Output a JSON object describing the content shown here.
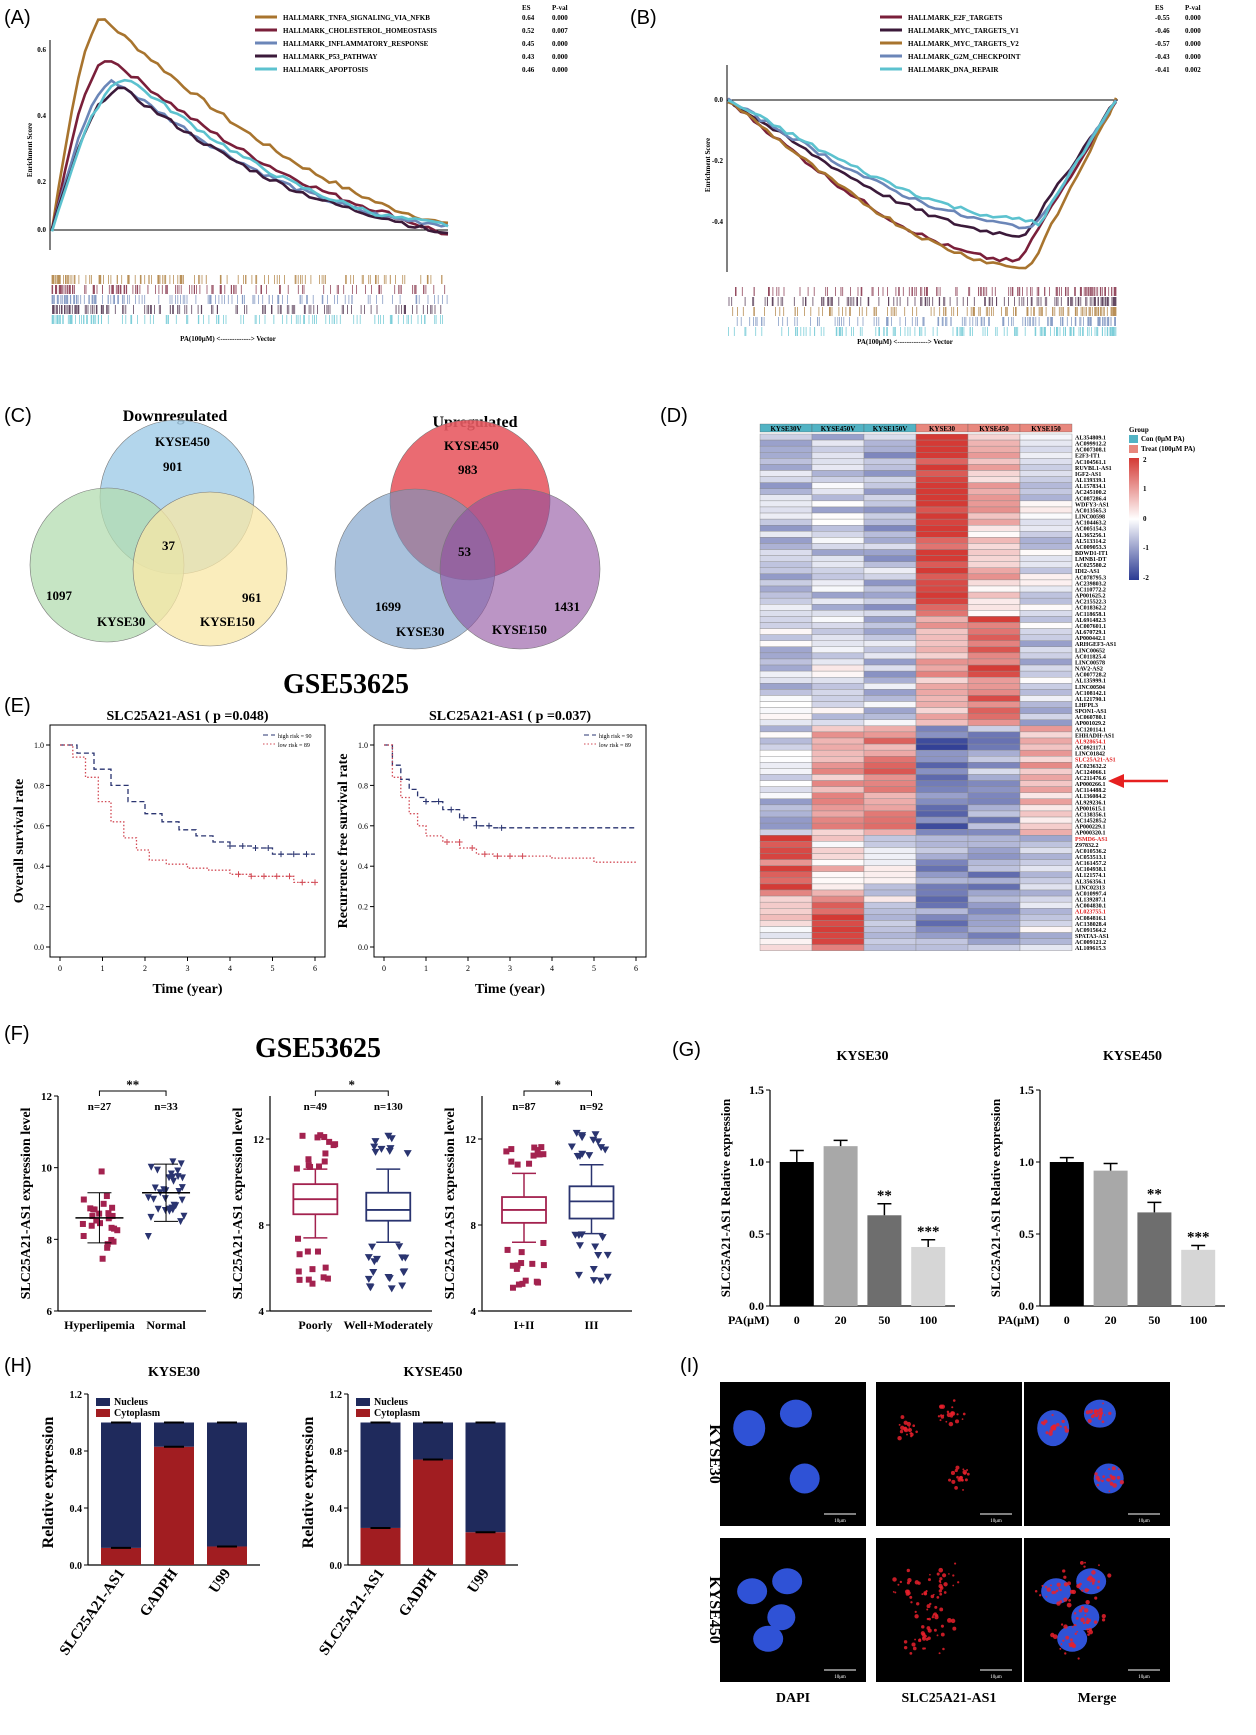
{
  "panels": {
    "A": {
      "label": "(A)",
      "chart_data": {
        "type": "line",
        "ylabel": "Enrichment Score",
        "xlabel": "PA(100μM) <-------------> Vector",
        "ticks": [
          "0.6",
          "0.4",
          "0.2",
          "0.0"
        ],
        "es_header": "ES",
        "pval_header": "P-val",
        "series": [
          {
            "name": "HALLMARK_TNFA_SIGNALING_VIA_NFKB",
            "es": "0.64",
            "pval": "0.000",
            "color": "#a8742e"
          },
          {
            "name": "HALLMARK_CHOLESTEROL_HOMEOSTASIS",
            "es": "0.52",
            "pval": "0.007",
            "color": "#7a1f3a"
          },
          {
            "name": "HALLMARK_INFLAMMATORY_RESPONSE",
            "es": "0.45",
            "pval": "0.000",
            "color": "#6b86b8"
          },
          {
            "name": "HALLMARK_P53_PATHWAY",
            "es": "0.43",
            "pval": "0.000",
            "color": "#3b1a3a"
          },
          {
            "name": "HALLMARK_APOPTOSIS",
            "es": "0.46",
            "pval": "0.000",
            "color": "#5cc2cf"
          }
        ]
      }
    },
    "B": {
      "label": "(B)",
      "chart_data": {
        "type": "line",
        "ylabel": "Enrichment Score",
        "xlabel": "PA(100μM) <-------------> Vector",
        "ticks": [
          "0.0",
          "-0.2",
          "-0.4"
        ],
        "es_header": "ES",
        "pval_header": "P-val",
        "series": [
          {
            "name": "HALLMARK_E2F_TARGETS",
            "es": "-0.55",
            "pval": "0.000",
            "color": "#7a1f3a"
          },
          {
            "name": "HALLMARK_MYC_TARGETS_V1",
            "es": "-0.46",
            "pval": "0.000",
            "color": "#3b1a3a"
          },
          {
            "name": "HALLMARK_MYC_TARGETS_V2",
            "es": "-0.57",
            "pval": "0.000",
            "color": "#a8742e"
          },
          {
            "name": "HALLMARK_G2M_CHECKPOINT",
            "es": "-0.43",
            "pval": "0.000",
            "color": "#6b86b8"
          },
          {
            "name": "HALLMARK_DNA_REPAIR",
            "es": "-0.41",
            "pval": "0.002",
            "color": "#5cc2cf"
          }
        ]
      }
    },
    "C": {
      "label": "(C)",
      "down": {
        "title": "Downregulated",
        "sets": [
          "KYSE450",
          "KYSE30",
          "KYSE150"
        ],
        "only": [
          "901",
          "1097",
          "961"
        ],
        "common": "37"
      },
      "up": {
        "title": "Upregulated",
        "sets": [
          "KYSE450",
          "KYSE30",
          "KYSE150"
        ],
        "only": [
          "983",
          "1699",
          "1431"
        ],
        "common": "53"
      }
    },
    "D": {
      "label": "(D)",
      "chart_data": {
        "type": "heatmap",
        "columns": [
          "KYSE30V",
          "KYSE450V",
          "KYSE150V",
          "KYSE30",
          "KYSE450",
          "KYSE150"
        ],
        "legend_title": "Group",
        "groups": [
          {
            "name": "Con (0μM PA)",
            "color": "#52b3c4"
          },
          {
            "name": "Treat (100μM PA)",
            "color": "#e8877d"
          }
        ],
        "scale_ticks": [
          "2",
          "1",
          "0",
          "-1",
          "-2"
        ],
        "rows": [
          "AL354809.1",
          "AC099912.2",
          "AC007308.1",
          "E2F3-IT1",
          "AC104561.1",
          "RUVBL1-AS1",
          "IGF2-AS1",
          "AL139339.1",
          "AL157834.1",
          "AC245100.2",
          "AC087286.4",
          "WDFY3-AS1",
          "AC013565.3",
          "LINC00598",
          "AC104463.2",
          "AC005154.3",
          "AL365256.1",
          "AL513314.2",
          "AC009053.3",
          "BDWD1-IT1",
          "LMNB1-DT",
          "AC025580.2",
          "IDI2-AS1",
          "AC078795.3",
          "AC239803.2",
          "AC110772.2",
          "AP001625.2",
          "AC215522.3",
          "AC018362.2",
          "AC118658.1",
          "AL691482.3",
          "AC007601.1",
          "AL670729.1",
          "AP000442.1",
          "ARHGEF3-AS1",
          "LINC00652",
          "AC011825.4",
          "LINC00578",
          "NAV2-AS2",
          "AC007728.2",
          "AL135999.1",
          "LINC00504",
          "AC108142.1",
          "AL121790.1",
          "LHFPL3",
          "SPON1-AS1",
          "AC060780.1",
          "AP001029.2",
          "AC120114.1",
          "EHHADH-AS1",
          "AL928654.1",
          "AC092117.1",
          "LINC01842",
          "SLC25A21-AS1",
          "AC023632.2",
          "AC124066.1",
          "AC211476.6",
          "AP000266.1",
          "AC114488.2",
          "AL136084.2",
          "AL929236.1",
          "AP001615.1",
          "AC138356.1",
          "AC145285.2",
          "AP000229.1",
          "AP000320.1",
          "PSMD6-AS1",
          "Z97832.2",
          "AC010536.2",
          "AC053513.1",
          "AC161457.2",
          "AC104938.1",
          "AL121574.1",
          "AL356356.1",
          "LINC02313",
          "AC010997.4",
          "AL139287.1",
          "AC004830.1",
          "AL023755.1",
          "AC084816.1",
          "AC138028.4",
          "AC091564.2",
          "SPATA3-AS1",
          "AC009121.2",
          "AL109615.3"
        ],
        "highlight_rows": [
          "AL928654.1",
          "SLC25A21-AS1",
          "PSMD6-AS1",
          "AL023755.1"
        ],
        "arrow_target": "SLC25A21-AS1"
      }
    },
    "E": {
      "label": "(E)",
      "dataset": "GSE53625",
      "plots": [
        {
          "title": "SLC25A21-AS1 ( p =0.048)",
          "ylabel": "Overall survival rate",
          "xlabel": "Time (year)",
          "legend": [
            "high risk = 90",
            "low risk = 89"
          ],
          "chart_data": {
            "type": "line",
            "x_ticks": [
              "0",
              "1",
              "2",
              "3",
              "4",
              "5",
              "6"
            ],
            "y_ticks": [
              "0.0",
              "0.2",
              "0.4",
              "0.6",
              "0.8",
              "1.0"
            ],
            "series": [
              {
                "name": "high risk = 90",
                "x": [
                  0,
                  0.4,
                  0.8,
                  1.2,
                  1.6,
                  2.0,
                  2.4,
                  2.8,
                  3.2,
                  3.6,
                  4.0,
                  4.5,
                  5.0,
                  5.5,
                  6.0
                ],
                "y": [
                  1.0,
                  0.96,
                  0.88,
                  0.8,
                  0.72,
                  0.66,
                  0.62,
                  0.58,
                  0.55,
                  0.52,
                  0.5,
                  0.49,
                  0.46,
                  0.46,
                  0.46
                ]
              },
              {
                "name": "low risk = 89",
                "x": [
                  0,
                  0.3,
                  0.6,
                  0.9,
                  1.2,
                  1.5,
                  1.8,
                  2.1,
                  2.5,
                  3.0,
                  3.5,
                  4.0,
                  4.5,
                  5.0,
                  5.5,
                  6.0
                ],
                "y": [
                  1.0,
                  0.94,
                  0.84,
                  0.72,
                  0.62,
                  0.54,
                  0.48,
                  0.43,
                  0.41,
                  0.39,
                  0.38,
                  0.36,
                  0.35,
                  0.35,
                  0.32,
                  0.32
                ]
              }
            ]
          }
        },
        {
          "title": "SLC25A21-AS1 ( p =0.037)",
          "ylabel": "Recurrence free survival rate",
          "xlabel": "Time (year)",
          "legend": [
            "high risk = 90",
            "low risk = 89"
          ],
          "chart_data": {
            "type": "line",
            "x_ticks": [
              "0",
              "1",
              "2",
              "3",
              "4",
              "5",
              "6"
            ],
            "y_ticks": [
              "0.0",
              "0.2",
              "0.4",
              "0.6",
              "0.8",
              "1.0"
            ],
            "series": [
              {
                "name": "high risk = 90",
                "x": [
                  0,
                  0.2,
                  0.4,
                  0.6,
                  0.8,
                  1.0,
                  1.4,
                  1.8,
                  2.2,
                  2.6,
                  3.0,
                  4.0,
                  5.0,
                  6.0
                ],
                "y": [
                  1.0,
                  0.9,
                  0.83,
                  0.78,
                  0.74,
                  0.72,
                  0.68,
                  0.64,
                  0.6,
                  0.59,
                  0.59,
                  0.59,
                  0.59,
                  0.59
                ]
              },
              {
                "name": "low risk = 89",
                "x": [
                  0,
                  0.2,
                  0.4,
                  0.6,
                  0.8,
                  1.0,
                  1.4,
                  1.8,
                  2.2,
                  2.6,
                  3.0,
                  4.0,
                  5.0,
                  6.0
                ],
                "y": [
                  1.0,
                  0.84,
                  0.74,
                  0.66,
                  0.6,
                  0.55,
                  0.52,
                  0.49,
                  0.46,
                  0.45,
                  0.45,
                  0.44,
                  0.42,
                  0.42
                ]
              }
            ]
          }
        }
      ]
    },
    "F": {
      "label": "(F)",
      "dataset": "GSE53625",
      "ylabel": "SLC25A21-AS1 expression level",
      "plots": [
        {
          "type": "scatter",
          "groups": [
            "Hyperlipemia",
            "Normal"
          ],
          "n": [
            "n=27",
            "n=33"
          ],
          "sig": "**",
          "y_ticks": [
            "6",
            "8",
            "10",
            "12"
          ],
          "y_min": 6,
          "y_max": 12,
          "means": [
            8.6,
            9.3
          ],
          "sd": [
            0.7,
            0.8
          ]
        },
        {
          "type": "box",
          "groups": [
            "Poorly",
            "Well+Moderately"
          ],
          "n": [
            "n=49",
            "n=130"
          ],
          "sig": "*",
          "y_ticks": [
            "4",
            "8",
            "12"
          ],
          "y_min": 4,
          "y_max": 14,
          "box": [
            [
              8.5,
              9.2,
              9.9,
              7.4,
              10.6
            ],
            [
              8.2,
              8.7,
              9.5,
              7.2,
              10.6
            ]
          ]
        },
        {
          "type": "box",
          "groups": [
            "I+II",
            "III"
          ],
          "n": [
            "n=87",
            "n=92"
          ],
          "sig": "*",
          "y_ticks": [
            "4",
            "8",
            "12"
          ],
          "y_min": 4,
          "y_max": 14,
          "box": [
            [
              8.1,
              8.7,
              9.3,
              7.2,
              10.4
            ],
            [
              8.3,
              9.1,
              9.8,
              7.6,
              10.8
            ]
          ]
        }
      ]
    },
    "G": {
      "label": "(G)",
      "ylabel": "SLC25A21-AS1 Relative expression",
      "xprefix": "PA(μM)",
      "plots": [
        {
          "title": "KYSE30",
          "chart_data": {
            "type": "bar",
            "categories": [
              "0",
              "20",
              "50",
              "100"
            ],
            "values": [
              1.0,
              1.11,
              0.63,
              0.41
            ],
            "err": [
              0.08,
              0.04,
              0.08,
              0.05
            ],
            "sig": [
              "",
              "",
              "**",
              "***"
            ],
            "y_ticks": [
              "0.0",
              "0.5",
              "1.0",
              "1.5"
            ],
            "ylim": [
              0,
              1.5
            ]
          }
        },
        {
          "title": "KYSE450",
          "chart_data": {
            "type": "bar",
            "categories": [
              "0",
              "20",
              "50",
              "100"
            ],
            "values": [
              1.0,
              0.94,
              0.65,
              0.39
            ],
            "err": [
              0.03,
              0.05,
              0.07,
              0.03
            ],
            "sig": [
              "",
              "",
              "**",
              "***"
            ],
            "y_ticks": [
              "0.0",
              "0.5",
              "1.0",
              "1.5"
            ],
            "ylim": [
              0,
              1.5
            ]
          }
        }
      ]
    },
    "H": {
      "label": "(H)",
      "ylabel": "Relative expression",
      "legend": [
        "Nucleus",
        "Cytoplasm"
      ],
      "plots": [
        {
          "title": "KYSE30",
          "chart_data": {
            "type": "bar",
            "categories": [
              "SLC25A21-AS1",
              "GADPH",
              "U99"
            ],
            "series": [
              {
                "name": "Cytoplasm",
                "values": [
                  0.12,
                  0.83,
                  0.13
                ]
              },
              {
                "name": "Nucleus",
                "values": [
                  0.88,
                  0.17,
                  0.87
                ]
              }
            ],
            "y_ticks": [
              "0.0",
              "0.4",
              "0.8",
              "1.2"
            ],
            "ylim": [
              0,
              1.2
            ]
          }
        },
        {
          "title": "KYSE450",
          "chart_data": {
            "type": "bar",
            "categories": [
              "SLC25A21-AS1",
              "GADPH",
              "U99"
            ],
            "series": [
              {
                "name": "Cytoplasm",
                "values": [
                  0.26,
                  0.74,
                  0.23
                ]
              },
              {
                "name": "Nucleus",
                "values": [
                  0.74,
                  0.26,
                  0.77
                ]
              }
            ],
            "y_ticks": [
              "0.0",
              "0.4",
              "0.8",
              "1.2"
            ],
            "ylim": [
              0,
              1.2
            ]
          }
        }
      ]
    },
    "I": {
      "label": "(I)",
      "rows": [
        "KYSE30",
        "KYSE450"
      ],
      "columns": [
        "DAPI",
        "SLC25A21-AS1",
        "Merge"
      ],
      "scale": "10μm"
    }
  },
  "colors": {
    "nucleus": "#1f2a5c",
    "cytoplasm": "#a11d21",
    "hyper": "#a3224f",
    "normal": "#2a3470"
  }
}
